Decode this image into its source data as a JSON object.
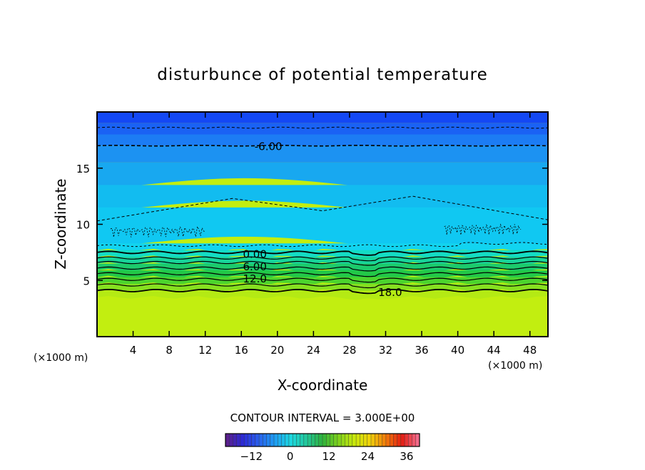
{
  "chart_data": {
    "type": "heatmap",
    "title": "disturbunce of potential temperature",
    "xlabel": "X-coordinate",
    "ylabel": "Z-coordinate",
    "x_unit": "(×1000 m)",
    "xlim": [
      0,
      50
    ],
    "ylim": [
      0,
      20
    ],
    "x_ticks": [
      4,
      8,
      12,
      16,
      20,
      24,
      28,
      32,
      36,
      40,
      44,
      48
    ],
    "y_ticks": [
      5,
      10,
      15
    ],
    "contour_interval_text": "CONTOUR INTERVAL = 3.000E+00",
    "contour_labels": [
      {
        "text": "-6.00",
        "x": 19,
        "z": 17.0
      },
      {
        "text": "0.00",
        "x": 17.5,
        "z": 7.4
      },
      {
        "text": "6.00",
        "x": 17.5,
        "z": 6.3
      },
      {
        "text": "12.0",
        "x": 17.5,
        "z": 5.2
      },
      {
        "text": "18.0",
        "x": 32.5,
        "z": 4.0
      }
    ],
    "colorbar": {
      "min": -20,
      "max": 40,
      "ticks": [
        -12,
        0,
        12,
        24,
        36
      ],
      "colors": [
        "#5a1f8f",
        "#2a2ad8",
        "#2a62ec",
        "#1d9cf2",
        "#1dd8e0",
        "#22c79a",
        "#2fb23c",
        "#7fd21c",
        "#c8e80c",
        "#f0d20a",
        "#f07a0a",
        "#e41e12",
        "#f26a8a"
      ]
    },
    "field_levels": [
      {
        "z_top": 20,
        "color": "#1448f4"
      },
      {
        "z_top": 19,
        "color": "#1a62f4"
      },
      {
        "z_top": 18,
        "color": "#1c7cf4"
      },
      {
        "z_top": 17,
        "color": "#1c92f2"
      },
      {
        "z_top": 15.5,
        "color": "#18a8f0"
      },
      {
        "z_top": 13.5,
        "color": "#12bcf0"
      },
      {
        "z_top": 11.5,
        "color": "#10c8f2"
      },
      {
        "z_top": 8.3,
        "color": "#12d4f0"
      },
      {
        "z_top": 7.7,
        "color": "#14dcc4"
      },
      {
        "z_top": 7.1,
        "color": "#18d49a"
      },
      {
        "z_top": 6.5,
        "color": "#1cca6c"
      },
      {
        "z_top": 5.9,
        "color": "#22c848"
      },
      {
        "z_top": 5.3,
        "color": "#4cd42e"
      },
      {
        "z_top": 4.7,
        "color": "#86e020"
      },
      {
        "z_top": 4.1,
        "color": "#b4ea14"
      }
    ],
    "bottom_color": "#c2ee10"
  }
}
